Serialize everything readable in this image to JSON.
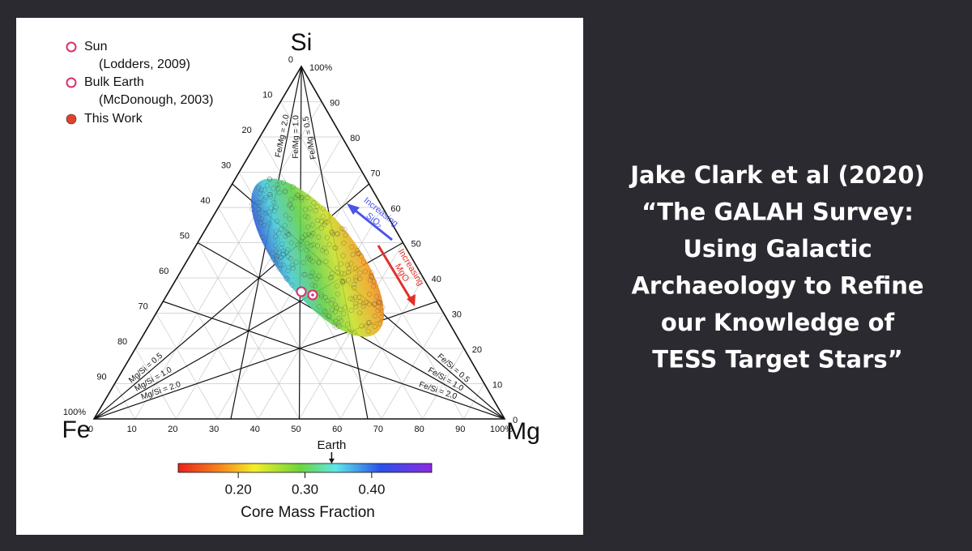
{
  "figure": {
    "legend": [
      {
        "label": "Sun",
        "note": "(Lodders, 2009)"
      },
      {
        "label": "Bulk Earth",
        "note": "(McDonough, 2003)"
      },
      {
        "label": "This Work"
      }
    ],
    "vertices": {
      "top": "Si",
      "left": "Fe",
      "right": "Mg"
    },
    "left_ticks": [
      "0",
      "10",
      "20",
      "30",
      "40",
      "50",
      "60",
      "70",
      "80",
      "90",
      "100%"
    ],
    "bottom_ticks": [
      "0",
      "10",
      "20",
      "30",
      "40",
      "50",
      "60",
      "70",
      "80",
      "90",
      "100%"
    ],
    "right_ticks": [
      "0",
      "10",
      "20",
      "30",
      "40",
      "50",
      "60",
      "70",
      "80",
      "90",
      "100%"
    ],
    "fe_mg_lines": [
      "Fe/Mg = 2.0",
      "Fe/Mg = 1.0",
      "Fe/Mg = 0.5"
    ],
    "mg_si_lines": [
      "Mg/Si = 0.5",
      "Mg/Si = 1.0",
      "Mg/Si = 2.0"
    ],
    "fe_si_lines": [
      "Fe/Si = 2.0",
      "Fe/Si = 1.0",
      "Fe/Si = 0.5"
    ],
    "arrow_sio2": [
      "Increasing",
      "SiO₂"
    ],
    "arrow_mgo": [
      "Increasing",
      "MgO"
    ],
    "colorbar": {
      "label": "Core Mass Fraction",
      "range": [
        0.11,
        0.49
      ],
      "ticks": [
        {
          "value": 0.2,
          "label": "0.20"
        },
        {
          "value": 0.3,
          "label": "0.30"
        },
        {
          "value": 0.4,
          "label": "0.40"
        }
      ],
      "marker": {
        "label": "Earth",
        "value": 0.34
      }
    }
  },
  "caption": [
    "Jake Clark et al (2020)",
    "“The GALAH Survey:",
    "Using Galactic",
    "Archaeology to Refine",
    "our Knowledge of",
    "TESS Target Stars”"
  ]
}
